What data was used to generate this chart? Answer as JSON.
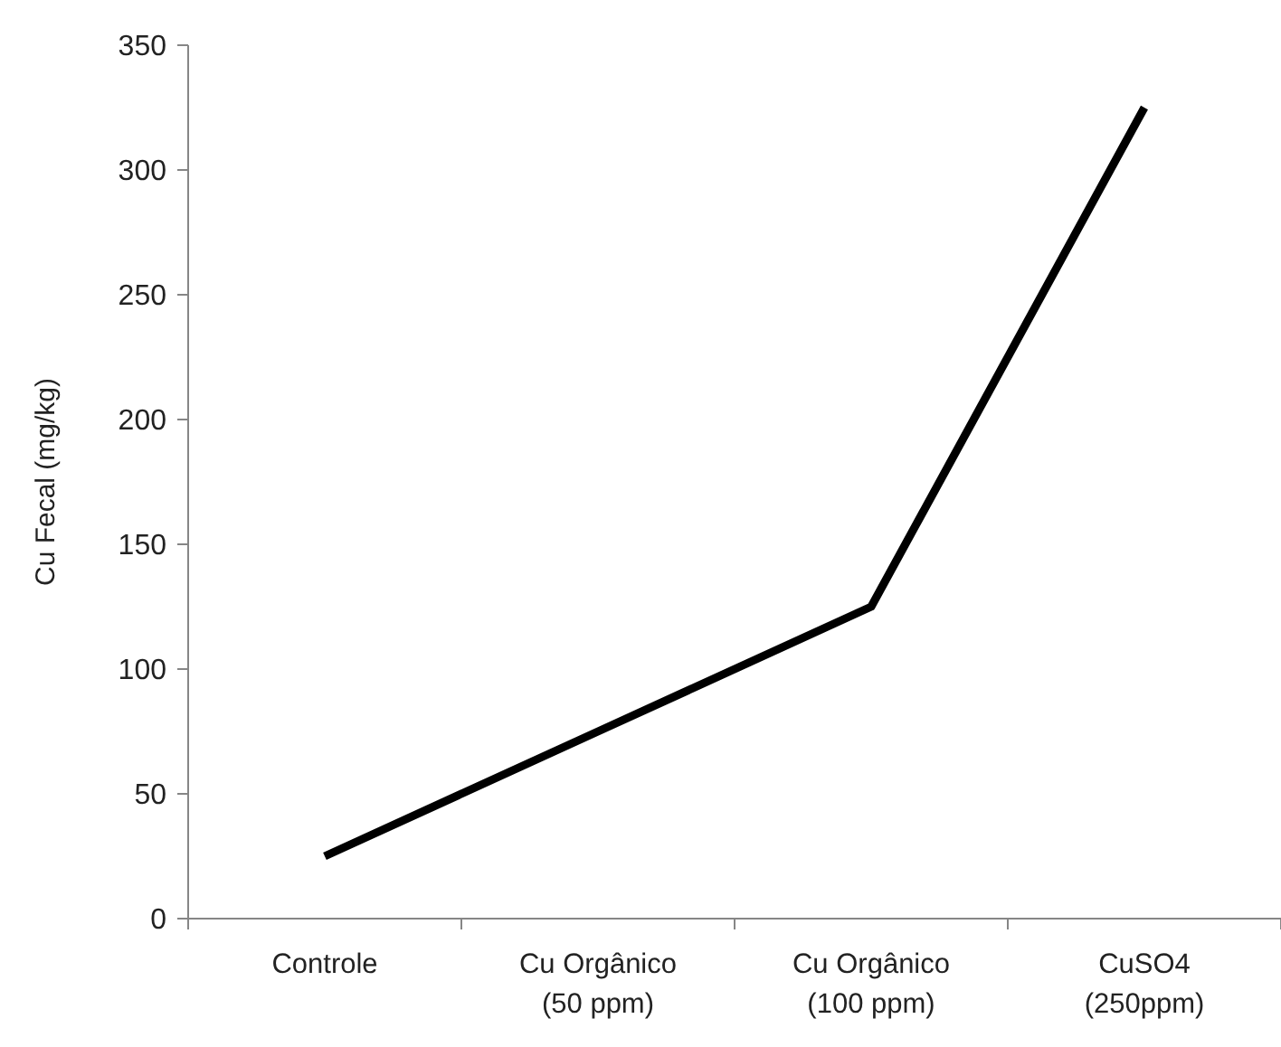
{
  "chart_data": {
    "type": "line",
    "ylabel": "Cu Fecal (mg/kg)",
    "categories": [
      "Controle",
      "Cu Orgânico\n(50 ppm)",
      "Cu Orgânico\n(100 ppm)",
      "CuSO4\n(250ppm)"
    ],
    "series": [
      {
        "color": "#000000",
        "values": [
          25,
          75,
          125,
          325
        ]
      }
    ],
    "ylim": [
      0,
      350
    ],
    "yticks": [
      0,
      50,
      100,
      150,
      200,
      250,
      300,
      350
    ],
    "grid": false,
    "marker": "none",
    "line_style": "solid"
  }
}
